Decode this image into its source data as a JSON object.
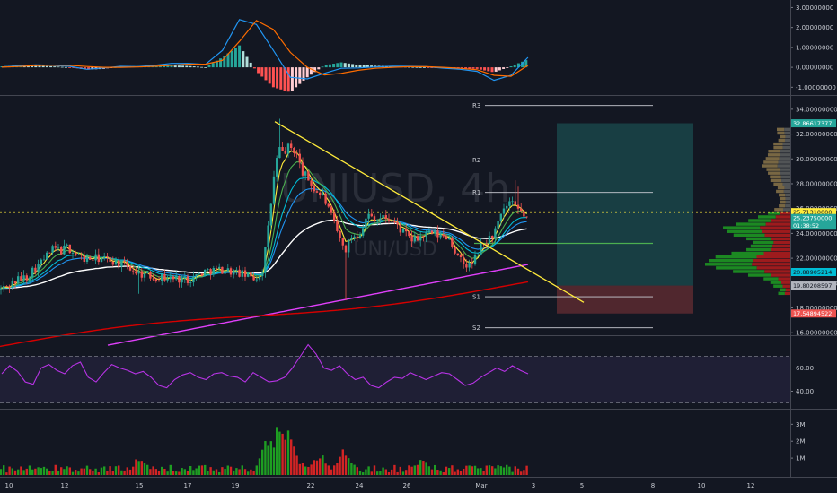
{
  "chart_data": [
    {
      "type": "line",
      "title": "",
      "panel": "macd",
      "ylim": [
        -1.3,
        3.2
      ],
      "y_ticks": [
        "3.00000000",
        "2.00000000",
        "1.00000000",
        "0.00000000",
        "-1.00000000"
      ],
      "y_tick_values": [
        3,
        2,
        1,
        0,
        -1
      ],
      "x": [
        0,
        6,
        12,
        18,
        24,
        30,
        36,
        42,
        48,
        54,
        60,
        66,
        72,
        78,
        84,
        90,
        96,
        102,
        108,
        114,
        120,
        126,
        132,
        138,
        144,
        150,
        156,
        162,
        168,
        174,
        180,
        186
      ],
      "series": [
        {
          "color": "#2196f3",
          "values": [
            0.02,
            0.08,
            0.12,
            0.1,
            0.05,
            -0.1,
            -0.03,
            0.05,
            0.03,
            0.1,
            0.2,
            0.2,
            0.15,
            0.85,
            2.4,
            2.15,
            0.85,
            -0.5,
            -0.58,
            -0.3,
            -0.05,
            -0.03,
            0.02,
            0.06,
            0.05,
            0.03,
            -0.04,
            -0.1,
            -0.2,
            -0.65,
            -0.4,
            0.5
          ]
        },
        {
          "color": "#ff6d00",
          "values": [
            0.01,
            0.04,
            0.09,
            0.11,
            0.1,
            0.04,
            0.0,
            0.0,
            0.02,
            0.05,
            0.1,
            0.16,
            0.16,
            0.35,
            1.3,
            2.35,
            1.9,
            0.75,
            0.0,
            -0.38,
            -0.3,
            -0.15,
            -0.05,
            0.0,
            0.03,
            0.03,
            0.0,
            -0.05,
            -0.12,
            -0.4,
            -0.45,
            0.1
          ]
        }
      ],
      "histogram": [
        0.05,
        0.1,
        0.08,
        0.05,
        0.0,
        -0.12,
        -0.08,
        0.05,
        0.06,
        0.08,
        0.1,
        0.07,
        0.0,
        0.5,
        1.1,
        -0.2,
        -1.0,
        -1.25,
        -0.5,
        0.1,
        0.25,
        0.12,
        0.08,
        0.06,
        0.02,
        0.0,
        -0.04,
        -0.05,
        -0.08,
        -0.25,
        0.05,
        0.4
      ]
    },
    {
      "type": "candlestick",
      "title": "",
      "panel": "price",
      "watermark": "UNIUSD, 4h",
      "watermark_sub": "UNI/USD",
      "ylim": [
        15.8,
        35.0
      ],
      "y_ticks": [
        "34.00000000",
        "32.00000000",
        "30.00000000",
        "28.00000000",
        "26.00000000",
        "24.00000000",
        "22.00000000",
        "20.00000000",
        "18.00000000",
        "16.00000000"
      ],
      "y_tick_values": [
        34,
        32,
        30,
        28,
        26,
        24,
        22,
        20,
        18,
        16
      ],
      "price_labels": [
        {
          "value": 32.86617377,
          "text": "32.86617377",
          "color": "#26a69a"
        },
        {
          "value": 25.7131,
          "text": "25.71310000",
          "color": "#ffeb3b"
        },
        {
          "value": 25.2375,
          "text": "25.23750000",
          "color": "#26a69a"
        },
        {
          "value": 24.9,
          "text": "01:38:52",
          "color": "#26a69a"
        },
        {
          "value": 20.88905214,
          "text": "20.88905214",
          "color": "#00bcd4"
        },
        {
          "value": 19.80208597,
          "text": "19.80208597",
          "color": "#b2b5be"
        },
        {
          "value": 17.54894522,
          "text": "17.54894522",
          "color": "#ef5350"
        }
      ],
      "pivots": [
        {
          "label": "R3",
          "value": 34.3
        },
        {
          "label": "R2",
          "value": 29.9
        },
        {
          "label": "R1",
          "value": 27.3
        },
        {
          "label": "S1",
          "value": 18.9
        },
        {
          "label": "S2",
          "value": 16.4
        }
      ],
      "dotted_level": 25.7131,
      "green_level": 23.2,
      "cyan_level": 20.889,
      "trendline": {
        "from": [
          306,
          33.0
        ],
        "to": [
          650,
          18.45
        ]
      },
      "position": {
        "entry": 19.8,
        "target": 32.87,
        "stop": 17.55,
        "from": 620,
        "to": 772
      },
      "x_tick_labels": [
        "10",
        "12",
        "15",
        "17",
        "19",
        "22",
        "24",
        "26",
        "Mar",
        "3",
        "5",
        "8",
        "10",
        "12"
      ],
      "x_tick_positions": [
        10,
        72,
        155,
        209,
        262,
        346,
        400,
        453,
        536,
        594,
        648,
        727,
        781,
        836
      ],
      "close_key": [
        [
          0,
          19.5
        ],
        [
          10,
          19.8
        ],
        [
          20,
          20.3
        ],
        [
          30,
          20.5
        ],
        [
          38,
          21.2
        ],
        [
          45,
          21.6
        ],
        [
          52,
          22.2
        ],
        [
          60,
          22.8
        ],
        [
          68,
          22.6
        ],
        [
          75,
          22.9
        ],
        [
          85,
          22.3
        ],
        [
          95,
          21.9
        ],
        [
          110,
          22.0
        ],
        [
          125,
          21.8
        ],
        [
          140,
          21.4
        ],
        [
          155,
          20.8
        ],
        [
          170,
          20.5
        ],
        [
          190,
          20.4
        ],
        [
          210,
          20.3
        ],
        [
          230,
          21.0
        ],
        [
          250,
          21.1
        ],
        [
          270,
          20.7
        ],
        [
          285,
          20.4
        ],
        [
          292,
          21.0
        ],
        [
          298,
          24.0
        ],
        [
          305,
          28.5
        ],
        [
          310,
          30.8
        ],
        [
          316,
          30.5
        ],
        [
          322,
          31.0
        ],
        [
          330,
          30.5
        ],
        [
          336,
          29.0
        ],
        [
          342,
          28.5
        ],
        [
          350,
          27.5
        ],
        [
          360,
          27.0
        ],
        [
          368,
          25.5
        ],
        [
          376,
          24.0
        ],
        [
          384,
          22.6
        ],
        [
          392,
          23.8
        ],
        [
          400,
          24.0
        ],
        [
          410,
          25.5
        ],
        [
          420,
          25.2
        ],
        [
          430,
          25.3
        ],
        [
          440,
          24.8
        ],
        [
          450,
          24.0
        ],
        [
          460,
          23.4
        ],
        [
          470,
          23.8
        ],
        [
          480,
          24.0
        ],
        [
          490,
          23.8
        ],
        [
          500,
          23.7
        ],
        [
          510,
          22.0
        ],
        [
          518,
          21.4
        ],
        [
          526,
          21.5
        ],
        [
          534,
          22.8
        ],
        [
          542,
          23.4
        ],
        [
          550,
          24.0
        ],
        [
          556,
          25.0
        ],
        [
          562,
          26.0
        ],
        [
          568,
          26.5
        ],
        [
          574,
          26.0
        ],
        [
          580,
          25.8
        ],
        [
          586,
          25.2
        ]
      ],
      "volume_profile_bands": 46
    },
    {
      "type": "line",
      "title": "",
      "panel": "rsi",
      "ylim": [
        25,
        85
      ],
      "y_ticks": [
        "60.00",
        "40.00"
      ],
      "y_tick_values": [
        60,
        40
      ],
      "band": [
        70,
        30
      ],
      "values": [
        55,
        62,
        57,
        48,
        46,
        60,
        63,
        58,
        55,
        62,
        65,
        52,
        48,
        56,
        63,
        60,
        58,
        55,
        57,
        52,
        45,
        43,
        50,
        54,
        56,
        52,
        50,
        55,
        56,
        53,
        52,
        48,
        56,
        52,
        48,
        49,
        52,
        60,
        70,
        80,
        72,
        60,
        58,
        62,
        55,
        50,
        52,
        45,
        43,
        48,
        52,
        51,
        56,
        53,
        50,
        53,
        56,
        55,
        50,
        45,
        47,
        52,
        56,
        60,
        57,
        62,
        58,
        55
      ]
    },
    {
      "type": "bar",
      "title": "",
      "panel": "volume",
      "ylim": [
        0,
        3.6
      ],
      "y_ticks": [
        "3M",
        "2M",
        "1M"
      ],
      "y_tick_values": [
        3,
        2,
        1
      ],
      "volume_spikes": [
        [
          155,
          1.4
        ],
        [
          298,
          2.3
        ],
        [
          310,
          3.6
        ],
        [
          322,
          2.9
        ],
        [
          356,
          1.6
        ],
        [
          384,
          1.9
        ],
        [
          470,
          1.1
        ]
      ]
    }
  ],
  "colors": {
    "background": "#131722",
    "up": "#26a69a",
    "down": "#ef5350",
    "vol_up": "#1e9e22",
    "vol_down": "#d32424",
    "ema_fast": "#ffeb3b",
    "ema_mid": "#4caf50",
    "ema_slow": "#00bcd4",
    "ema_slower": "#2196f3",
    "sma100": "#ffffff",
    "sma200_a": "#e040fb",
    "sma200_b": "#d50000",
    "rsi": "#b833e6",
    "separator": "#434651"
  }
}
